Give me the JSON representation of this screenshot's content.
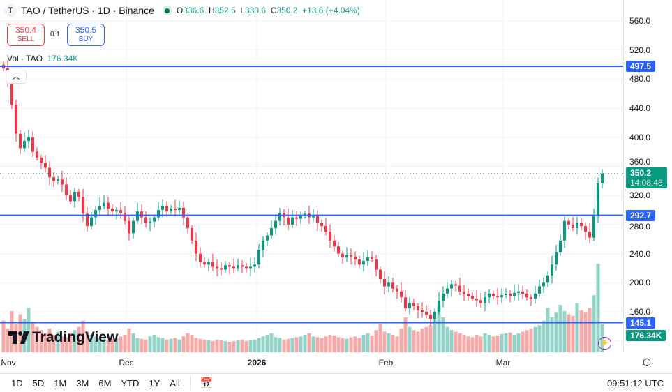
{
  "header": {
    "symbol_icon": "T",
    "title": "TAO / TetherUS · 1D · Binance",
    "market_status": "open",
    "ohlc": {
      "o_label": "O",
      "o": "336.6",
      "h_label": "H",
      "h": "352.5",
      "l_label": "L",
      "l": "330.6",
      "c_label": "C",
      "c": "350.2",
      "change": "+13.6 (+4.04%)"
    }
  },
  "trade": {
    "sell_price": "350.4",
    "sell_label": "SELL",
    "spread": "0.1",
    "buy_price": "350.5",
    "buy_label": "BUY"
  },
  "volume_legend": {
    "label": "Vol · TAO",
    "value": "176.34K"
  },
  "collapse_icon": "chevron-up-icon",
  "brand": "TradingView",
  "colors": {
    "up": "#089981",
    "down": "#f23645",
    "line": "#2962ff",
    "vol_up": "#92d2c7",
    "vol_down": "#f7a9a7"
  },
  "price_axis": {
    "ticks": [
      "560.0",
      "520.0",
      "480.0",
      "440.0",
      "400.0",
      "360.0",
      "320.0",
      "280.0",
      "240.0",
      "200.0",
      "160.0"
    ],
    "last_price": "350.2",
    "countdown": "14:08:48",
    "volume_label": "176.34K"
  },
  "horizontal_lines": [
    {
      "price": 497.5,
      "label": "497.5"
    },
    {
      "price": 292.7,
      "label": "292.7"
    },
    {
      "price": 145.1,
      "label": "145.1"
    }
  ],
  "time_axis": [
    "Nov",
    "Dec",
    "2026",
    "Feb",
    "Mar"
  ],
  "bottom_bar": {
    "ranges": [
      "1D",
      "5D",
      "1M",
      "3M",
      "6M",
      "YTD",
      "1Y",
      "All"
    ],
    "clock": "09:51:12 UTC"
  },
  "chart_data": {
    "type": "candlestick",
    "interval": "1D",
    "ylim": [
      110,
      565
    ],
    "close": [
      495,
      478,
      445,
      405,
      385,
      395,
      400,
      380,
      372,
      365,
      358,
      345,
      340,
      342,
      335,
      320,
      312,
      325,
      318,
      295,
      278,
      290,
      300,
      305,
      310,
      302,
      298,
      300,
      296,
      285,
      268,
      285,
      298,
      290,
      282,
      284,
      290,
      300,
      305,
      298,
      302,
      300,
      303,
      290,
      275,
      258,
      240,
      228,
      225,
      228,
      222,
      220,
      218,
      224,
      222,
      220,
      224,
      222,
      220,
      222,
      225,
      245,
      258,
      265,
      275,
      285,
      296,
      290,
      280,
      290,
      288,
      292,
      295,
      290,
      292,
      282,
      278,
      270,
      258,
      250,
      240,
      235,
      238,
      236,
      232,
      225,
      230,
      235,
      232,
      218,
      205,
      195,
      200,
      192,
      188,
      180,
      165,
      172,
      168,
      162,
      160,
      156,
      150,
      160,
      175,
      185,
      192,
      198,
      196,
      188,
      185,
      182,
      178,
      176,
      172,
      180,
      185,
      182,
      180,
      183,
      185,
      182,
      186,
      188,
      185,
      180,
      178,
      185,
      195,
      200,
      210,
      225,
      242,
      258,
      285,
      280,
      275,
      282,
      278,
      270,
      262,
      292,
      336.6,
      350.2
    ],
    "first_open": 500,
    "volume_k": [
      200,
      150,
      260,
      180,
      240,
      210,
      280,
      190,
      160,
      140,
      120,
      150,
      110,
      130,
      100,
      95,
      120,
      140,
      160,
      200,
      130,
      110,
      100,
      90,
      95,
      80,
      85,
      90,
      100,
      110,
      150,
      120,
      90,
      85,
      80,
      100,
      110,
      95,
      90,
      80,
      85,
      90,
      80,
      100,
      120,
      110,
      90,
      85,
      80,
      75,
      70,
      80,
      75,
      70,
      65,
      70,
      75,
      80,
      70,
      75,
      80,
      90,
      100,
      110,
      120,
      95,
      90,
      80,
      85,
      90,
      95,
      100,
      110,
      120,
      100,
      95,
      90,
      100,
      110,
      105,
      95,
      90,
      85,
      95,
      100,
      90,
      110,
      120,
      105,
      140,
      180,
      130,
      120,
      110,
      100,
      150,
      220,
      160,
      140,
      130,
      150,
      160,
      170,
      210,
      300,
      220,
      160,
      140,
      130,
      120,
      110,
      100,
      95,
      110,
      100,
      120,
      110,
      100,
      105,
      115,
      120,
      125,
      110,
      120,
      130,
      140,
      150,
      160,
      170,
      200,
      280,
      220,
      250,
      300,
      260,
      240,
      230,
      310,
      265,
      250,
      280,
      360,
      560,
      176.34
    ]
  }
}
